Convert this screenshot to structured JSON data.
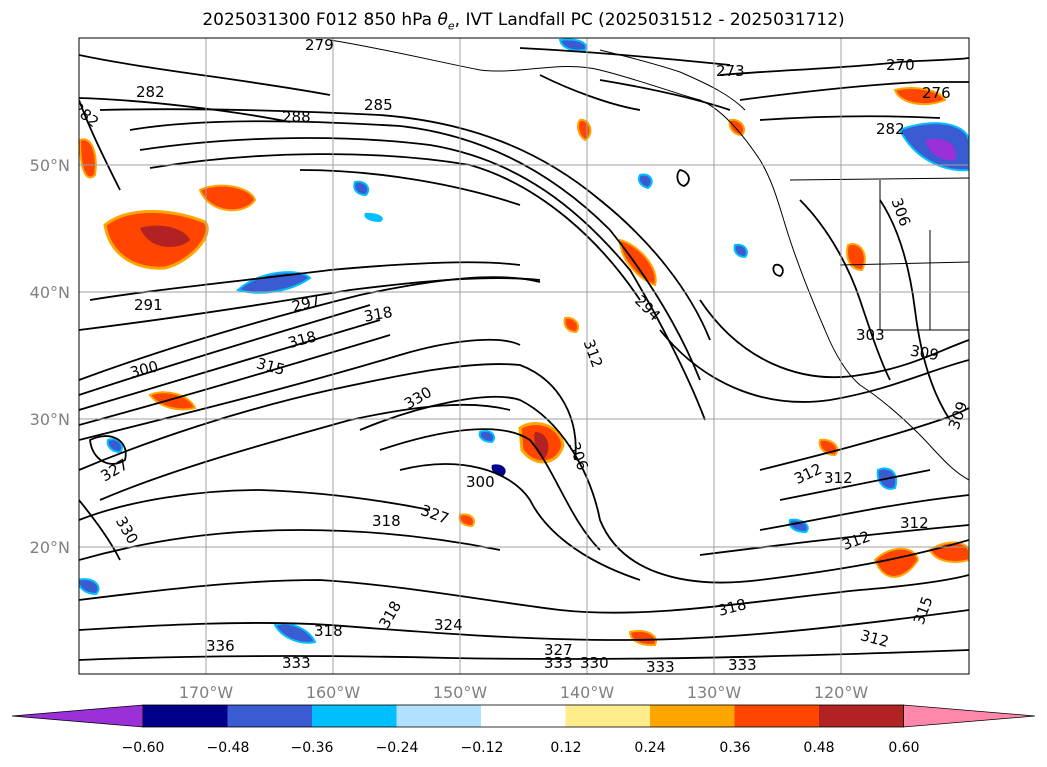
{
  "title_main": "2025031300 F012 850 hPa ",
  "title_theta": "θ",
  "title_sub": "e",
  "title_rest": ", IVT Landfall PC (2025031512 - 2025031712)",
  "map": {
    "lat_labels": [
      "50°N",
      "40°N",
      "30°N",
      "20°N"
    ],
    "lon_labels": [
      "170°W",
      "160°W",
      "150°W",
      "140°W",
      "130°W",
      "120°W"
    ],
    "contour_labels": [
      "279",
      "282",
      "282",
      "288",
      "285",
      "273",
      "270",
      "276",
      "282",
      "291",
      "297",
      "318",
      "318",
      "315",
      "300",
      "312",
      "294",
      "330",
      "312",
      "306",
      "300",
      "312",
      "312",
      "312",
      "318",
      "330",
      "327",
      "336",
      "333",
      "318",
      "318",
      "324",
      "327",
      "333",
      "330",
      "333",
      "318",
      "333",
      "312",
      "315",
      "303",
      "309",
      "309",
      "306",
      "327"
    ]
  },
  "colorbar": {
    "ticks": [
      "−0.60",
      "−0.48",
      "−0.36",
      "−0.24",
      "−0.12",
      "0.12",
      "0.24",
      "0.36",
      "0.48",
      "0.60"
    ],
    "colors": {
      "under": "#9b30d9",
      "bins": [
        "#9b30d9",
        "#00008b",
        "#3a5bd1",
        "#00bfff",
        "#b0e2ff",
        "#ffffff",
        "#ffec8b",
        "#ffa500",
        "#ff4500",
        "#b22222"
      ],
      "over": "#ff88aa"
    }
  }
}
